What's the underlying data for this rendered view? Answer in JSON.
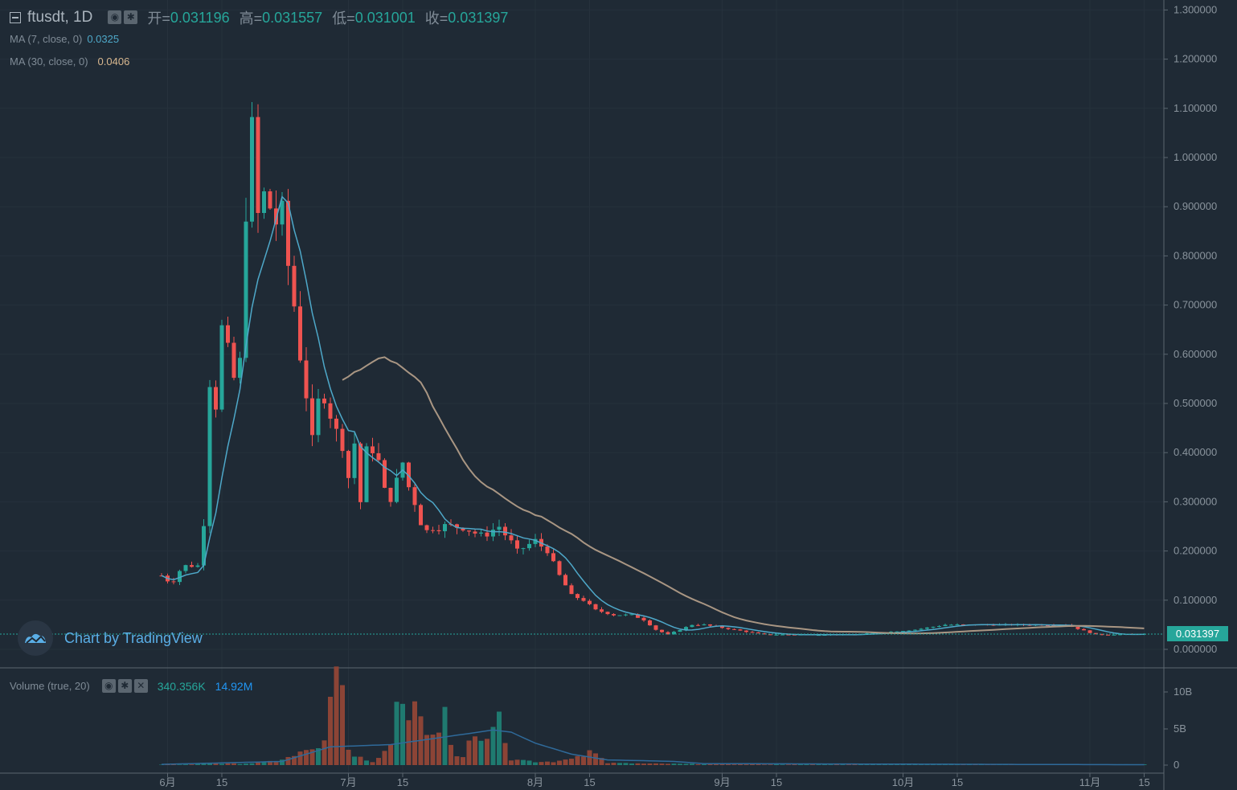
{
  "header": {
    "symbol": "ftusdt, 1D",
    "open_label": "开=",
    "open": "0.031196",
    "high_label": "高=",
    "high": "0.031557",
    "low_label": "低=",
    "low": "0.031001",
    "close_label": "收=",
    "close": "0.031397",
    "icons": [
      "eye-icon",
      "gear-icon"
    ]
  },
  "legends": {
    "ma7_label": "MA (7, close, 0)",
    "ma7_value": "0.0325",
    "ma30_label": "MA (30, close, 0)",
    "ma30_value": "0.0406",
    "volume_label": "Volume (true, 20)",
    "volume_value": "340.356K",
    "volume_ma_value": "14.92M",
    "volume_icons": [
      "eye-icon",
      "gear-icon",
      "close-icon"
    ]
  },
  "watermark": {
    "text": "Chart by TradingView"
  },
  "last_price": "0.031397",
  "colors": {
    "background": "#1f2a35",
    "up": "#26a69a",
    "down": "#ef5350",
    "ma7": "#4ea8c9",
    "ma30": "#a99683",
    "vol_ma": "#2f6a9a"
  },
  "chart_data": [
    {
      "type": "candlestick",
      "title": "ftusdt, 1D",
      "y_ticks": [
        "1.300000",
        "1.200000",
        "1.100000",
        "1.000000",
        "0.900000",
        "0.800000",
        "0.700000",
        "0.600000",
        "0.500000",
        "0.400000",
        "0.300000",
        "0.200000",
        "0.100000",
        "0.000000"
      ],
      "ylim": [
        0,
        1.3
      ],
      "x_ticks": [
        "6月",
        "15",
        "7月",
        "15",
        "8月",
        "15",
        "9月",
        "15",
        "10月",
        "15",
        "11月",
        "15"
      ],
      "x_tick_days": [
        1,
        10,
        31,
        40,
        62,
        71,
        93,
        102,
        123,
        132,
        154,
        163
      ],
      "start_label": "6月",
      "series_names": [
        "MA (7, close, 0)",
        "MA (30, close, 0)"
      ],
      "anchors": [
        [
          0,
          0.15
        ],
        [
          1,
          0.14
        ],
        [
          2,
          0.14
        ],
        [
          3,
          0.16
        ],
        [
          4,
          0.17
        ],
        [
          5,
          0.17
        ],
        [
          6,
          0.17
        ],
        [
          7,
          0.26
        ],
        [
          8,
          0.55
        ],
        [
          9,
          0.5
        ],
        [
          10,
          0.65
        ],
        [
          11,
          0.6
        ],
        [
          12,
          0.55
        ],
        [
          13,
          0.58
        ],
        [
          14,
          0.9
        ],
        [
          15,
          1.05
        ],
        [
          16,
          0.88
        ],
        [
          17,
          0.92
        ],
        [
          18,
          0.9
        ],
        [
          19,
          0.87
        ],
        [
          20,
          0.88
        ],
        [
          21,
          0.78
        ],
        [
          22,
          0.7
        ],
        [
          23,
          0.6
        ],
        [
          24,
          0.52
        ],
        [
          25,
          0.42
        ],
        [
          26,
          0.5
        ],
        [
          27,
          0.52
        ],
        [
          28,
          0.48
        ],
        [
          29,
          0.44
        ],
        [
          30,
          0.42
        ],
        [
          31,
          0.35
        ],
        [
          32,
          0.42
        ],
        [
          33,
          0.3
        ],
        [
          34,
          0.4
        ],
        [
          35,
          0.41
        ],
        [
          36,
          0.38
        ],
        [
          37,
          0.32
        ],
        [
          38,
          0.31
        ],
        [
          39,
          0.34
        ],
        [
          40,
          0.38
        ],
        [
          41,
          0.33
        ],
        [
          42,
          0.3
        ],
        [
          43,
          0.26
        ],
        [
          44,
          0.24
        ],
        [
          45,
          0.25
        ],
        [
          47,
          0.25
        ],
        [
          50,
          0.25
        ],
        [
          53,
          0.23
        ],
        [
          56,
          0.25
        ],
        [
          59,
          0.2
        ],
        [
          62,
          0.22
        ],
        [
          64,
          0.2
        ],
        [
          66,
          0.15
        ],
        [
          68,
          0.11
        ],
        [
          70,
          0.1
        ],
        [
          72,
          0.08
        ],
        [
          75,
          0.07
        ],
        [
          78,
          0.07
        ],
        [
          80,
          0.06
        ],
        [
          82,
          0.04
        ],
        [
          84,
          0.03
        ],
        [
          86,
          0.04
        ],
        [
          88,
          0.05
        ],
        [
          90,
          0.05
        ],
        [
          95,
          0.04
        ],
        [
          100,
          0.03
        ],
        [
          105,
          0.03
        ],
        [
          115,
          0.03
        ],
        [
          125,
          0.04
        ],
        [
          130,
          0.05
        ],
        [
          140,
          0.05
        ],
        [
          150,
          0.05
        ],
        [
          155,
          0.03
        ],
        [
          163,
          0.031
        ]
      ],
      "last_day": 163,
      "ma30_start_day": 30,
      "last_value": 0.031397
    },
    {
      "type": "bar",
      "title": "Volume (true, 20)",
      "y_ticks": [
        "10B",
        "5B",
        "0"
      ],
      "ylim": [
        0,
        12000000000
      ],
      "volume_anchors": [
        [
          0,
          0.05
        ],
        [
          5,
          0.1
        ],
        [
          8,
          0.3
        ],
        [
          10,
          0.2
        ],
        [
          13,
          0.2
        ],
        [
          16,
          0.3
        ],
        [
          18,
          0.5
        ],
        [
          20,
          0.8
        ],
        [
          22,
          1.2
        ],
        [
          24,
          2.0
        ],
        [
          25,
          2.4
        ],
        [
          26,
          2.0
        ],
        [
          27,
          3.0
        ],
        [
          28,
          8.0
        ],
        [
          29,
          12.0
        ],
        [
          30,
          10.0
        ],
        [
          31,
          2.0
        ],
        [
          34,
          0.5
        ],
        [
          35,
          0.5
        ],
        [
          36,
          1.0
        ],
        [
          38,
          3.0
        ],
        [
          39,
          10.5
        ],
        [
          40,
          9.0
        ],
        [
          41,
          7.0
        ],
        [
          42,
          10.0
        ],
        [
          43,
          8.0
        ],
        [
          44,
          5.0
        ],
        [
          46,
          5.0
        ],
        [
          47,
          8.0
        ],
        [
          48,
          3.0
        ],
        [
          49,
          1.5
        ],
        [
          50,
          1.0
        ],
        [
          51,
          4.0
        ],
        [
          52,
          5.0
        ],
        [
          53,
          4.0
        ],
        [
          55,
          5.0
        ],
        [
          56,
          8.0
        ],
        [
          57,
          3.0
        ],
        [
          58,
          0.8
        ],
        [
          62,
          0.4
        ],
        [
          66,
          0.5
        ],
        [
          70,
          1.5
        ],
        [
          71,
          2.5
        ],
        [
          72,
          1.5
        ],
        [
          74,
          0.3
        ],
        [
          80,
          0.2
        ],
        [
          100,
          0.1
        ],
        [
          163,
          0.1
        ]
      ],
      "volume_ma_anchors": [
        [
          0,
          0.1
        ],
        [
          20,
          0.5
        ],
        [
          28,
          2.5
        ],
        [
          38,
          2.8
        ],
        [
          44,
          3.5
        ],
        [
          50,
          4.2
        ],
        [
          55,
          4.8
        ],
        [
          58,
          4.5
        ],
        [
          62,
          3.0
        ],
        [
          68,
          1.5
        ],
        [
          74,
          0.7
        ],
        [
          80,
          0.6
        ],
        [
          85,
          0.5
        ],
        [
          90,
          0.2
        ],
        [
          163,
          0.05
        ]
      ]
    }
  ]
}
